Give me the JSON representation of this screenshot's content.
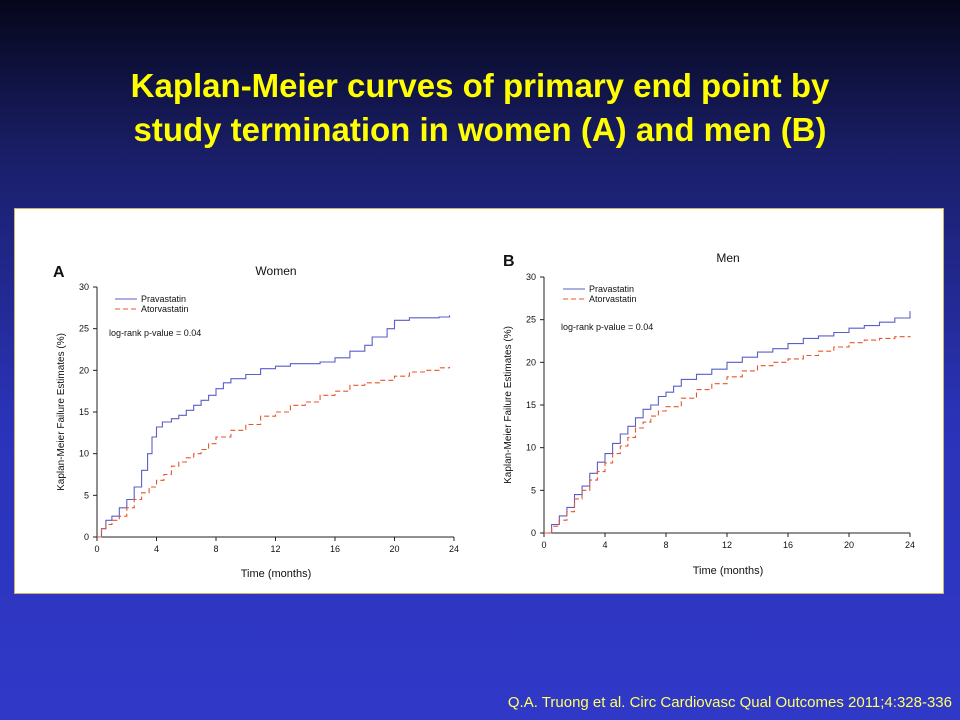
{
  "slide": {
    "title_line1": "Kaplan-Meier curves of primary end point by",
    "title_line2": "study termination in women (A) and men (B)",
    "citation": "Q.A. Truong et al. Circ Cardiovasc Qual Outcomes 2011;4:328-336"
  },
  "colors": {
    "pravastatin": "#5a5fc8",
    "atorvastatin": "#e8552a",
    "title": "#ffff00",
    "citation": "#ffff66"
  },
  "chart_data": [
    {
      "type": "line",
      "panel_letter": "A",
      "title": "Women",
      "xlabel": "Time (months)",
      "ylabel": "Kaplan-Meier Failure Estimates (%)",
      "xlim": [
        0,
        24
      ],
      "ylim": [
        0,
        30
      ],
      "x_ticks": [
        "0",
        "4",
        "8",
        "12",
        "16",
        "20",
        "24"
      ],
      "y_ticks": [
        "0",
        "5",
        "10",
        "15",
        "20",
        "25",
        "30"
      ],
      "grid": false,
      "legend_position": "top-left",
      "annotation": "log-rank p-value = 0.04",
      "series": [
        {
          "name": "Pravastatin",
          "style": "solid",
          "points": [
            [
              0,
              0
            ],
            [
              0.3,
              1
            ],
            [
              0.6,
              2
            ],
            [
              1,
              2.5
            ],
            [
              1.5,
              3.5
            ],
            [
              2,
              4.5
            ],
            [
              2.5,
              6
            ],
            [
              3,
              8
            ],
            [
              3.4,
              10
            ],
            [
              3.7,
              12
            ],
            [
              4,
              13.2
            ],
            [
              4.4,
              13.8
            ],
            [
              5,
              14.2
            ],
            [
              5.5,
              14.6
            ],
            [
              6,
              15.2
            ],
            [
              6.5,
              15.8
            ],
            [
              7,
              16.4
            ],
            [
              7.5,
              17
            ],
            [
              8,
              17.8
            ],
            [
              8.5,
              18.5
            ],
            [
              9,
              19
            ],
            [
              10,
              19.5
            ],
            [
              11,
              20.2
            ],
            [
              12,
              20.5
            ],
            [
              13,
              20.8
            ],
            [
              15,
              21
            ],
            [
              16,
              21.5
            ],
            [
              17,
              22.3
            ],
            [
              18,
              23
            ],
            [
              18.5,
              24
            ],
            [
              19.5,
              25
            ],
            [
              20,
              26
            ],
            [
              21,
              26.3
            ],
            [
              23,
              26.4
            ],
            [
              23.7,
              26.6
            ]
          ]
        },
        {
          "name": "Atorvastatin",
          "style": "dashed",
          "points": [
            [
              0,
              0
            ],
            [
              0.3,
              1
            ],
            [
              0.6,
              1.5
            ],
            [
              1,
              2
            ],
            [
              1.5,
              2.5
            ],
            [
              2,
              3.5
            ],
            [
              2.5,
              4.5
            ],
            [
              3,
              5.3
            ],
            [
              3.5,
              6
            ],
            [
              4,
              6.8
            ],
            [
              4.5,
              7.5
            ],
            [
              5,
              8.5
            ],
            [
              5.5,
              9
            ],
            [
              6,
              9.5
            ],
            [
              6.5,
              10
            ],
            [
              7,
              10.5
            ],
            [
              7.5,
              11.2
            ],
            [
              8,
              12
            ],
            [
              9,
              12.8
            ],
            [
              10,
              13.5
            ],
            [
              11,
              14.5
            ],
            [
              12,
              15
            ],
            [
              13,
              15.8
            ],
            [
              14,
              16.2
            ],
            [
              15,
              17
            ],
            [
              16,
              17.5
            ],
            [
              17,
              18.2
            ],
            [
              18,
              18.5
            ],
            [
              19,
              18.8
            ],
            [
              20,
              19.3
            ],
            [
              21,
              19.8
            ],
            [
              22,
              20
            ],
            [
              23,
              20.3
            ],
            [
              23.7,
              20.4
            ]
          ]
        }
      ]
    },
    {
      "type": "line",
      "panel_letter": "B",
      "title": "Men",
      "xlabel": "Time (months)",
      "ylabel": "Kaplan-Meier Failure Estimates (%)",
      "xlim": [
        0,
        24
      ],
      "ylim": [
        0,
        30
      ],
      "x_ticks": [
        "0",
        "4",
        "8",
        "12",
        "16",
        "20",
        "24"
      ],
      "y_ticks": [
        "0",
        "5",
        "10",
        "15",
        "20",
        "25",
        "30"
      ],
      "grid": false,
      "legend_position": "top-left",
      "annotation": "log-rank p-value = 0.04",
      "series": [
        {
          "name": "Pravastatin",
          "style": "solid",
          "points": [
            [
              0,
              0
            ],
            [
              0.5,
              1
            ],
            [
              1,
              2
            ],
            [
              1.5,
              3
            ],
            [
              2,
              4.5
            ],
            [
              2.5,
              5.5
            ],
            [
              3,
              7
            ],
            [
              3.5,
              8.3
            ],
            [
              4,
              9.3
            ],
            [
              4.5,
              10.5
            ],
            [
              5,
              11.6
            ],
            [
              5.5,
              12.5
            ],
            [
              6,
              13.5
            ],
            [
              6.5,
              14.5
            ],
            [
              7,
              15
            ],
            [
              7.5,
              16
            ],
            [
              8,
              16.5
            ],
            [
              8.5,
              17.2
            ],
            [
              9,
              18
            ],
            [
              10,
              18.6
            ],
            [
              11,
              19.2
            ],
            [
              12,
              20
            ],
            [
              13,
              20.6
            ],
            [
              14,
              21.2
            ],
            [
              15,
              21.6
            ],
            [
              16,
              22.2
            ],
            [
              17,
              22.8
            ],
            [
              18,
              23.1
            ],
            [
              19,
              23.5
            ],
            [
              20,
              24
            ],
            [
              21,
              24.3
            ],
            [
              22,
              24.7
            ],
            [
              23,
              25.2
            ],
            [
              24,
              26
            ]
          ]
        },
        {
          "name": "Atorvastatin",
          "style": "dashed",
          "points": [
            [
              0,
              0
            ],
            [
              0.5,
              0.8
            ],
            [
              1,
              1.5
            ],
            [
              1.5,
              2.5
            ],
            [
              2,
              4
            ],
            [
              2.5,
              5
            ],
            [
              3,
              6.2
            ],
            [
              3.5,
              7.2
            ],
            [
              4,
              8.2
            ],
            [
              4.5,
              9.3
            ],
            [
              5,
              10.2
            ],
            [
              5.5,
              11.2
            ],
            [
              6,
              12.3
            ],
            [
              6.5,
              13
            ],
            [
              7,
              13.7
            ],
            [
              7.5,
              14.3
            ],
            [
              8,
              14.8
            ],
            [
              9,
              15.8
            ],
            [
              10,
              16.8
            ],
            [
              11,
              17.5
            ],
            [
              12,
              18.3
            ],
            [
              13,
              19
            ],
            [
              14,
              19.6
            ],
            [
              15,
              20
            ],
            [
              16,
              20.4
            ],
            [
              17,
              20.8
            ],
            [
              18,
              21.3
            ],
            [
              19,
              21.8
            ],
            [
              20,
              22.3
            ],
            [
              21,
              22.6
            ],
            [
              22,
              22.8
            ],
            [
              23,
              23
            ],
            [
              24,
              23.1
            ]
          ]
        }
      ]
    }
  ]
}
